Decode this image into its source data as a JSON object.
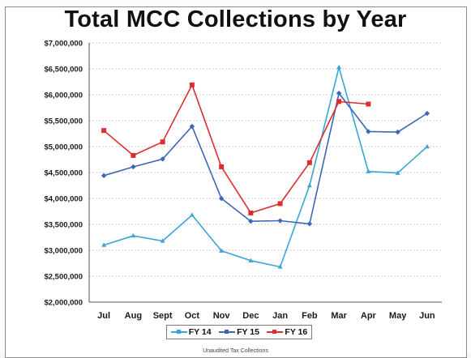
{
  "title": "Total MCC Collections by Year",
  "footnote": "Unaudited Tax Collections",
  "chart_data": {
    "type": "line",
    "title": "Total MCC Collections by Year",
    "categories": [
      "Jul",
      "Aug",
      "Sept",
      "Oct",
      "Nov",
      "Dec",
      "Jan",
      "Feb",
      "Mar",
      "Apr",
      "May",
      "Jun"
    ],
    "yticks": [
      "$2,000,000",
      "$2,500,000",
      "$3,000,000",
      "$3,500,000",
      "$4,000,000",
      "$4,500,000",
      "$5,000,000",
      "$5,500,000",
      "$6,000,000",
      "$6,500,000",
      "$7,000,000"
    ],
    "ylim": [
      2000000,
      7000000
    ],
    "grid": true,
    "legend_position": "bottom",
    "series": [
      {
        "name": "FY 14",
        "color": "#39a6d6",
        "marker": "triangle",
        "values": [
          3100000,
          3280000,
          3180000,
          3680000,
          2990000,
          2800000,
          2680000,
          4250000,
          6530000,
          4520000,
          4490000,
          5000000
        ]
      },
      {
        "name": "FY 15",
        "color": "#3b67b5",
        "marker": "diamond",
        "values": [
          4440000,
          4610000,
          4760000,
          5390000,
          4000000,
          3560000,
          3570000,
          3510000,
          6030000,
          5290000,
          5280000,
          5640000
        ]
      },
      {
        "name": "FY 16",
        "color": "#dd2e2e",
        "marker": "square",
        "values": [
          5310000,
          4830000,
          5090000,
          6190000,
          4610000,
          3720000,
          3900000,
          4690000,
          5870000,
          5820000,
          null,
          null
        ]
      }
    ]
  }
}
